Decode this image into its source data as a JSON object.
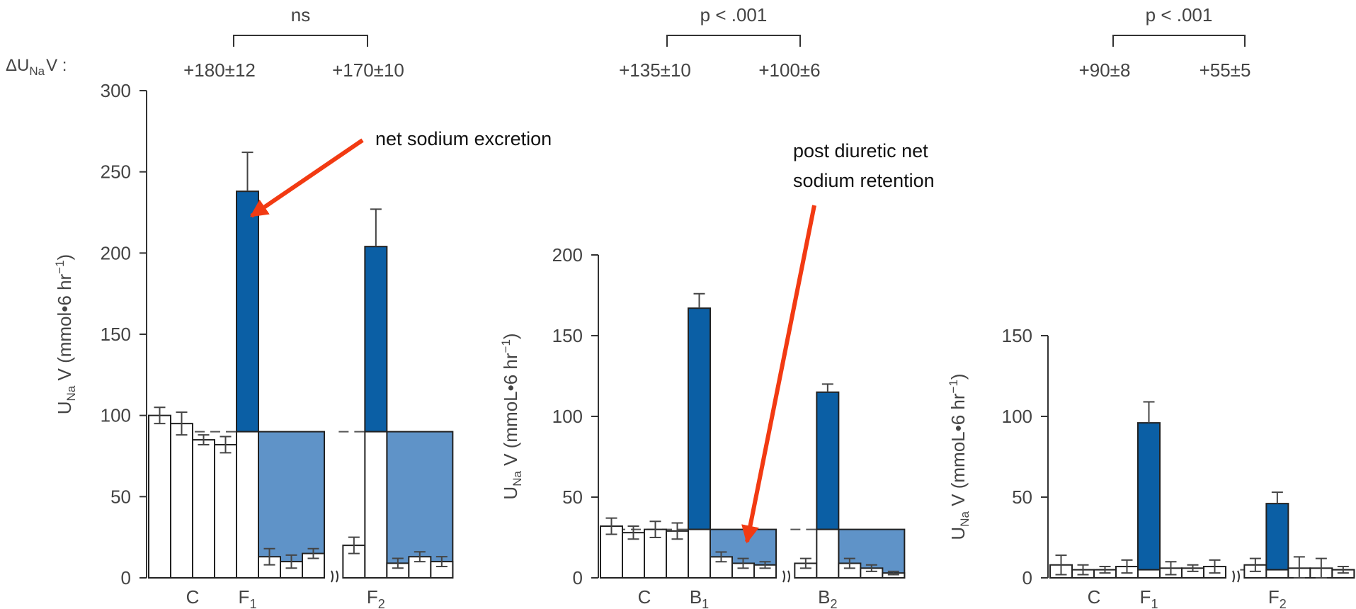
{
  "colors": {
    "excretion": "#0b5fa5",
    "retention": "#5f93c8",
    "baseline_bar": "#ffffff",
    "arrow": "#f23a12",
    "axis": "#333333"
  },
  "delta_label": "ΔU",
  "delta_sub": "Na",
  "delta_suffix": "V :",
  "annotations": {
    "excretion": "net sodium excretion",
    "retention_line1": "post diuretic net",
    "retention_line2": "sodium retention"
  },
  "chart_data": [
    {
      "type": "bar",
      "ylabel": {
        "pre": "U",
        "sub": "Na",
        "mid": " V (mmol•6 hr",
        "sup": "−1",
        "post": ")"
      },
      "ylim": [
        0,
        300
      ],
      "yticks": [
        "0",
        "50",
        "100",
        "150",
        "200",
        "250",
        "300"
      ],
      "baseline": 90,
      "top_stat": "ns",
      "deltas": [
        "+180±12",
        "+170±10"
      ],
      "categories": [
        {
          "main": "C",
          "sub": ""
        },
        {
          "main": "F",
          "sub": "1"
        },
        {
          "main": "F",
          "sub": "2"
        }
      ],
      "control_values": [
        100,
        95,
        85,
        82
      ],
      "control_err": [
        5,
        7,
        3,
        5
      ],
      "treatments": [
        {
          "value": 238,
          "err": 24,
          "post_values": [
            13,
            10,
            15
          ],
          "post_err": [
            5,
            4,
            3
          ]
        },
        {
          "value": 204,
          "err": 23,
          "pre_value": 20,
          "pre_err": 5,
          "post_values": [
            9,
            13,
            10
          ],
          "post_err": [
            3,
            3,
            3
          ]
        }
      ]
    },
    {
      "type": "bar",
      "ylabel": {
        "pre": "U",
        "sub": "Na",
        "mid": " V (mmoL•6 hr",
        "sup": "−1",
        "post": ")"
      },
      "ylim": [
        0,
        200
      ],
      "yticks": [
        "0",
        "50",
        "100",
        "150",
        "200"
      ],
      "baseline": 30,
      "top_stat": "p < .001",
      "deltas": [
        "+135±10",
        "+100±6"
      ],
      "categories": [
        {
          "main": "C",
          "sub": ""
        },
        {
          "main": "B",
          "sub": "1"
        },
        {
          "main": "B",
          "sub": "2"
        }
      ],
      "control_values": [
        32,
        28,
        30,
        29
      ],
      "control_err": [
        5,
        4,
        5,
        5
      ],
      "treatments": [
        {
          "value": 167,
          "err": 9,
          "post_values": [
            13,
            9,
            8
          ],
          "post_err": [
            3,
            3,
            2
          ]
        },
        {
          "value": 115,
          "err": 5,
          "pre_value": 9,
          "pre_err": 3,
          "post_values": [
            9,
            6,
            3
          ],
          "post_err": [
            3,
            2,
            1
          ]
        }
      ]
    },
    {
      "type": "bar",
      "ylabel": {
        "pre": "U",
        "sub": "Na",
        "mid": " V (mmoL•6 hr",
        "sup": "−1",
        "post": ")"
      },
      "ylim": [
        0,
        150
      ],
      "yticks": [
        "0",
        "50",
        "100",
        "150"
      ],
      "baseline": 5,
      "top_stat": "p < .001",
      "deltas": [
        "+90±8",
        "+55±5"
      ],
      "categories": [
        {
          "main": "C",
          "sub": ""
        },
        {
          "main": "F",
          "sub": "1"
        },
        {
          "main": "F",
          "sub": "2"
        }
      ],
      "control_values": [
        8,
        5,
        5,
        7
      ],
      "control_err": [
        6,
        3,
        2,
        4
      ],
      "treatments": [
        {
          "value": 96,
          "err": 13,
          "post_values": [
            6,
            6,
            7
          ],
          "post_err": [
            4,
            2,
            4
          ]
        },
        {
          "value": 46,
          "err": 7,
          "pre_value": 8,
          "pre_err": 4,
          "post_values": [
            6,
            6,
            5
          ],
          "post_err": [
            7,
            6,
            2
          ]
        }
      ]
    }
  ]
}
